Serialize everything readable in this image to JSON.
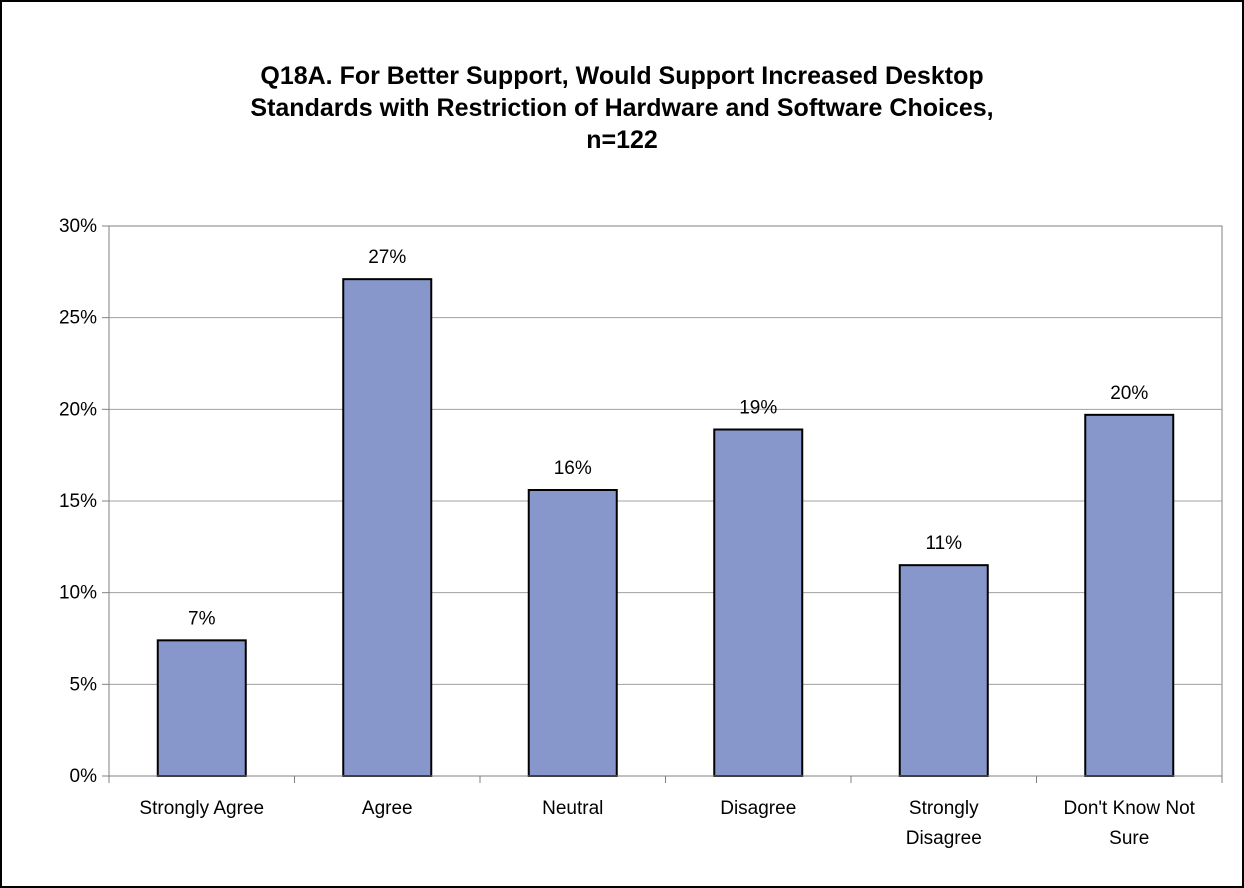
{
  "chart_data": {
    "type": "bar",
    "title_lines": [
      "Q18A. For Better Support, Would Support Increased Desktop",
      "Standards with Restriction of Hardware and Software Choices,",
      "n=122"
    ],
    "categories": [
      [
        "Strongly Agree"
      ],
      [
        "Agree"
      ],
      [
        "Neutral"
      ],
      [
        "Disagree"
      ],
      [
        "Strongly",
        "Disagree"
      ],
      [
        "Don't Know Not",
        "Sure"
      ]
    ],
    "values": [
      7.4,
      27.1,
      15.6,
      18.9,
      11.5,
      19.7
    ],
    "data_labels": [
      "7%",
      "27%",
      "16%",
      "19%",
      "11%",
      "20%"
    ],
    "ylim": [
      0,
      30
    ],
    "yticks": [
      0,
      5,
      10,
      15,
      20,
      25,
      30
    ],
    "ytick_labels": [
      "0%",
      "5%",
      "10%",
      "15%",
      "20%",
      "25%",
      "30%"
    ],
    "grid": true,
    "legend": "none",
    "colors": {
      "bar_fill": "#8797cc",
      "bar_stroke": "#000000",
      "grid": "#a0a0a0",
      "axis": "#808080"
    }
  }
}
